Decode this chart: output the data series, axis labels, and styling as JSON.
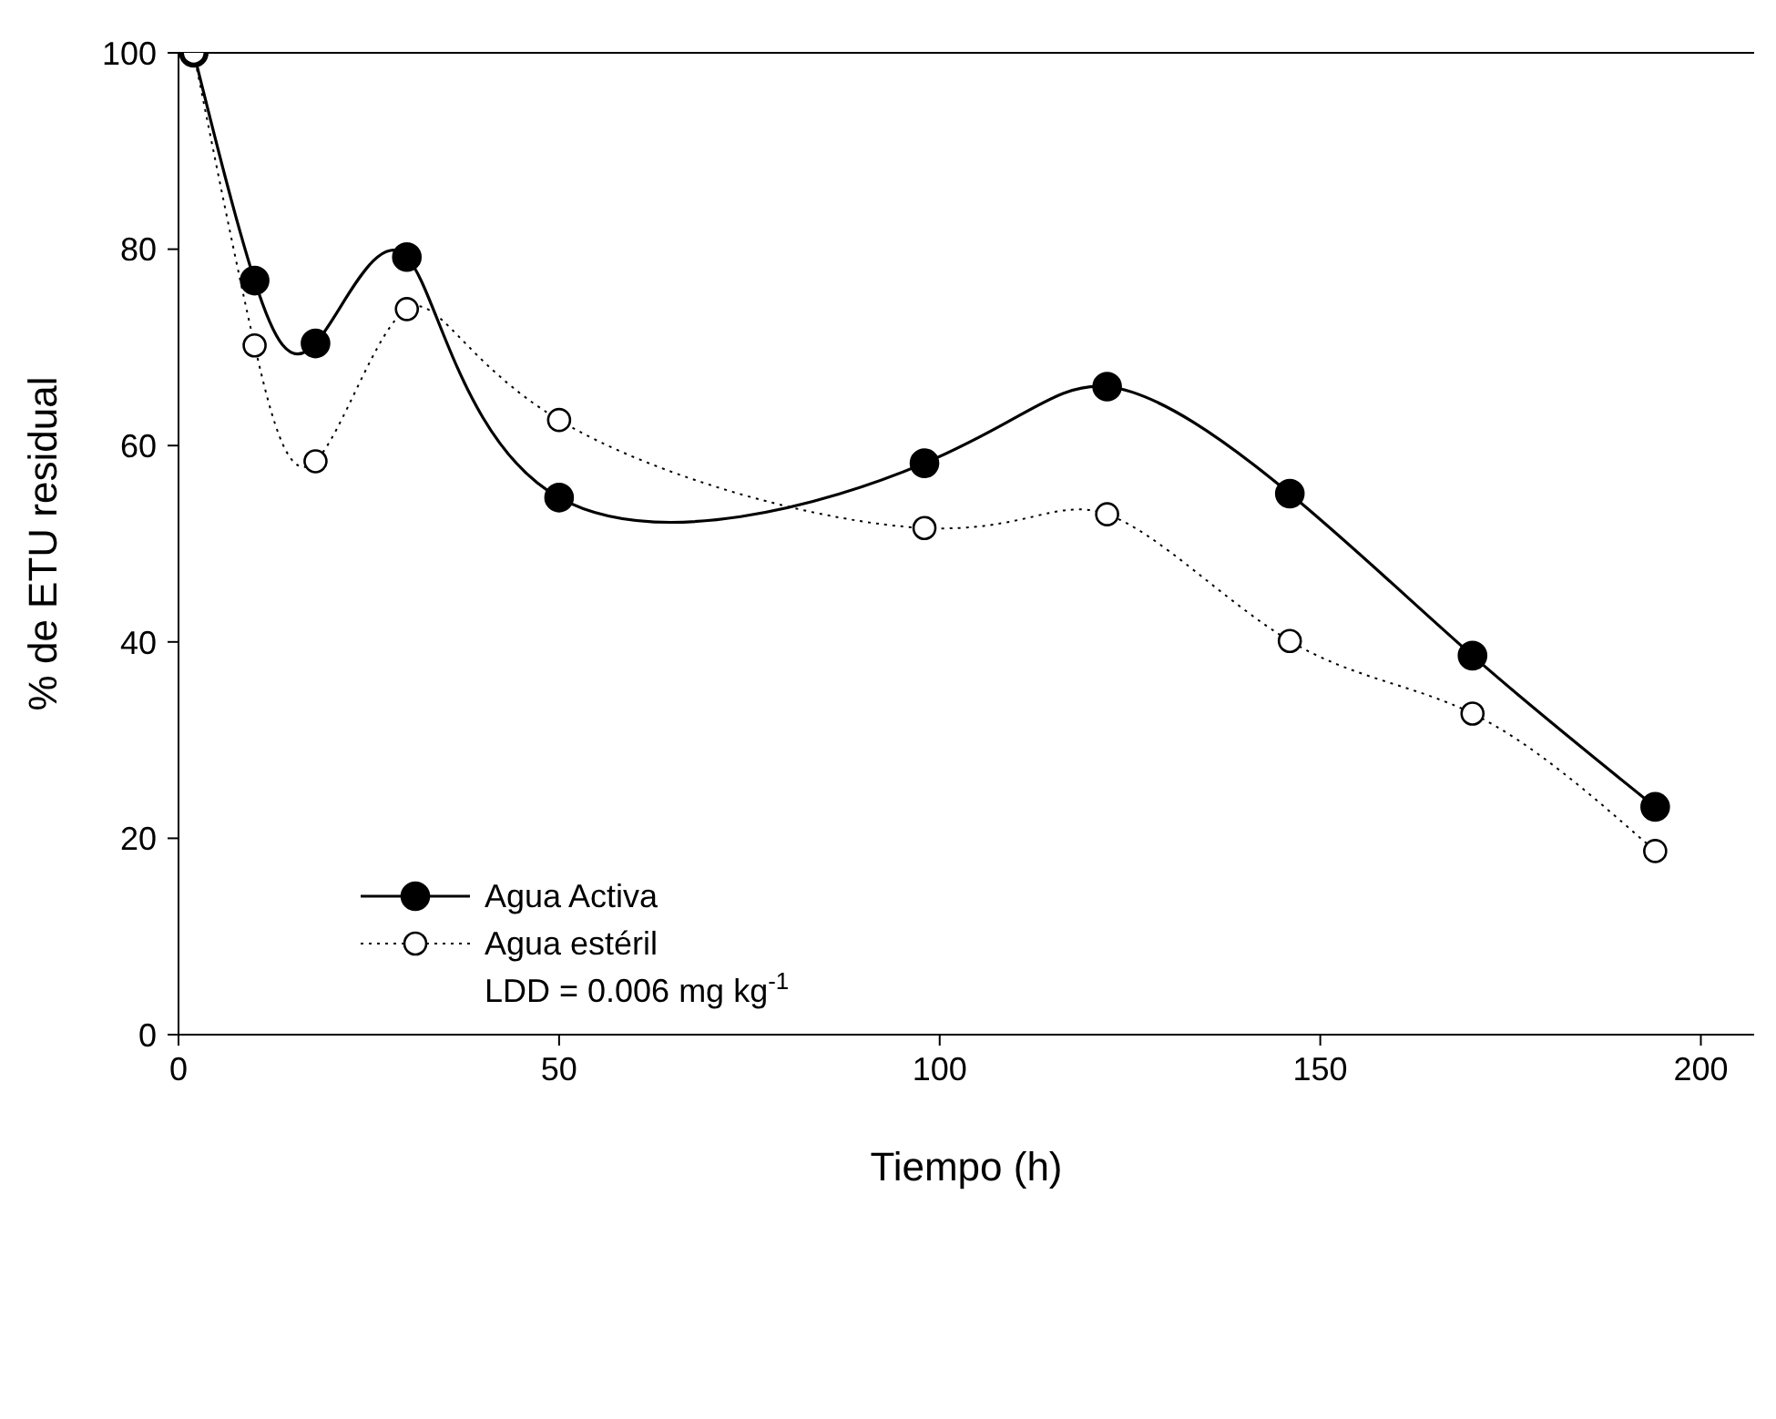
{
  "chart_data": {
    "type": "line",
    "xlabel": "Tiempo (h)",
    "ylabel": "% de ETU residual",
    "xlim": [
      0,
      207
    ],
    "xticks": [
      0,
      50,
      100,
      150,
      200
    ],
    "ylim": [
      0,
      100
    ],
    "yticks": [
      0,
      20,
      40,
      60,
      80,
      100
    ],
    "grid": false,
    "legend": "bottom left",
    "marker": "circle",
    "annotations": [
      "LDD = 0.006 mg kg$^{-1}$"
    ],
    "series": [
      {
        "name": "Agua Activa",
        "color": "#000000",
        "line_style": "solid",
        "x": [
          2,
          10,
          18,
          30,
          50,
          98,
          122,
          146,
          170,
          194
        ],
        "values": [
          100,
          76.8,
          70.4,
          79.2,
          54.7,
          58.2,
          66,
          55.1,
          38.6,
          23.2
        ]
      },
      {
        "name": "Agua estéril",
        "color": "#000000",
        "line_style": "dotted",
        "x": [
          2,
          10,
          18,
          30,
          50,
          98,
          122,
          146,
          170,
          194
        ],
        "values": [
          100,
          70.2,
          58.4,
          73.9,
          62.6,
          51.6,
          53,
          40.1,
          32.7,
          18.7
        ]
      }
    ]
  }
}
